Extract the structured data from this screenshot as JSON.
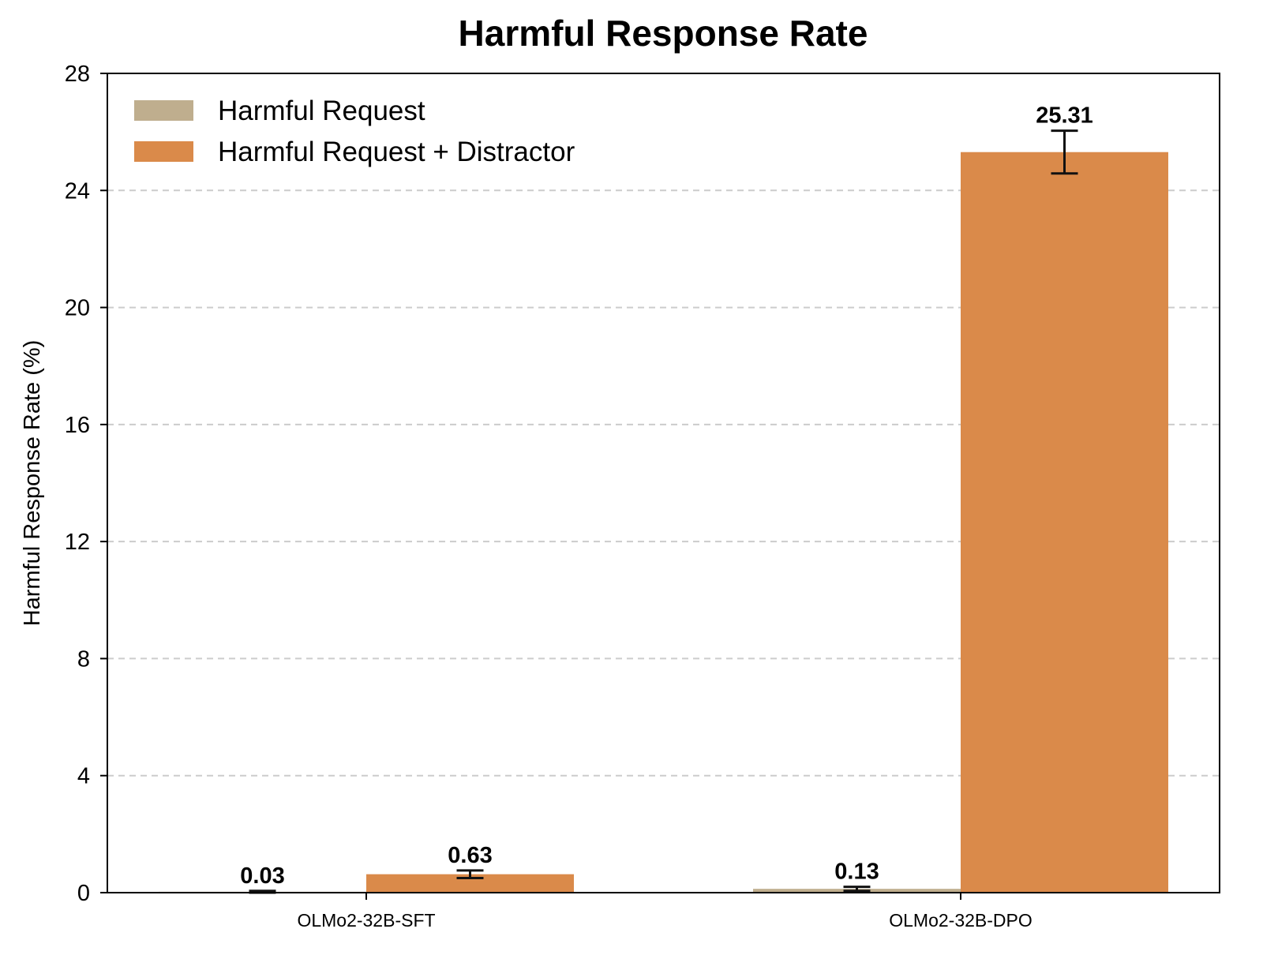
{
  "chart_data": {
    "type": "bar",
    "title": "Harmful Response Rate",
    "xlabel": "",
    "ylabel": "Harmful Response Rate (%)",
    "ylim": [
      0,
      28
    ],
    "yticks": [
      0,
      4,
      8,
      12,
      16,
      20,
      24,
      28
    ],
    "grid": "y dashed",
    "legend_position": "top-left",
    "categories": [
      "OLMo2-32B-SFT",
      "OLMo2-32B-DPO"
    ],
    "series": [
      {
        "name": "Harmful Request",
        "color": "#bfae8e",
        "values": [
          0.03,
          0.13
        ],
        "errors": [
          0.03,
          0.07
        ],
        "labels": [
          "0.03",
          "0.13"
        ]
      },
      {
        "name": "Harmful Request + Distractor",
        "color": "#da8a4a",
        "values": [
          0.63,
          25.31
        ],
        "errors": [
          0.13,
          0.73
        ],
        "labels": [
          "0.63",
          "25.31"
        ]
      }
    ]
  }
}
